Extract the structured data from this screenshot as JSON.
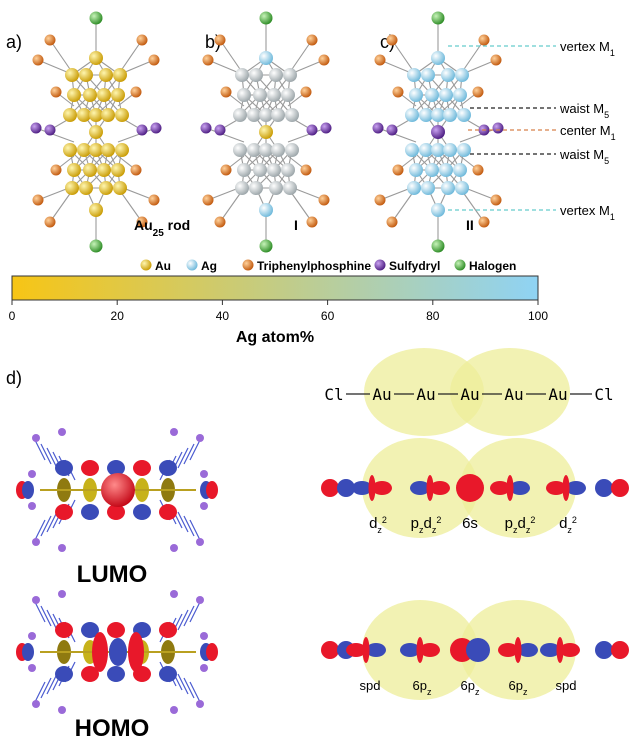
{
  "panel_labels": {
    "a": "a)",
    "b": "b)",
    "c": "c)",
    "d": "d)"
  },
  "cluster_names": {
    "a": "Au",
    "a_sub": "25",
    "a_suffix": " rod",
    "b": "I",
    "c": "II"
  },
  "site_labels": [
    {
      "text": "vertex M",
      "sub": "1",
      "color": "#66cccc"
    },
    {
      "text": "waist M",
      "sub": "5",
      "color": "#222222"
    },
    {
      "text": "center M",
      "sub": "1",
      "color": "#d8804a"
    },
    {
      "text": "waist M",
      "sub": "5",
      "color": "#222222"
    },
    {
      "text": "vertex M",
      "sub": "1",
      "color": "#66cccc"
    }
  ],
  "legend": [
    {
      "label": "Au",
      "color": "#e8c21a"
    },
    {
      "label": "Ag",
      "color": "#a8d8ee"
    },
    {
      "label": "Triphenylphosphine",
      "color": "#e07a1a"
    },
    {
      "label": "Sulfydryl",
      "color": "#6a2fa0"
    },
    {
      "label": "Halogen",
      "color": "#3fb03a"
    }
  ],
  "colorbar": {
    "gradient_start": "#f7c515",
    "gradient_end": "#8fd3f4",
    "ticks": [
      "0",
      "20",
      "40",
      "60",
      "80",
      "100"
    ],
    "tick_values": [
      0,
      20,
      40,
      60,
      80,
      100
    ],
    "title": "Ag atom%"
  },
  "chain_atoms": [
    "Cl",
    "Au",
    "Au",
    "Au",
    "Au",
    "Au",
    "Cl"
  ],
  "lumo_orbitals": [
    "d",
    "z",
    "2",
    "p",
    "z",
    "d",
    "z",
    "2",
    "6s",
    "p",
    "z",
    "d",
    "z",
    "2",
    "d",
    "z",
    "2"
  ],
  "lumo_labels": [
    {
      "main": "d",
      "sub": "z",
      "sup": "2"
    },
    {
      "main": "p",
      "sub": "z",
      "main2": "d",
      "sub2": "z",
      "sup": "2"
    },
    {
      "main": "6s"
    },
    {
      "main": "p",
      "sub": "z",
      "main2": "d",
      "sub2": "z",
      "sup": "2"
    },
    {
      "main": "d",
      "sub": "z",
      "sup": "2"
    }
  ],
  "homo_labels": [
    {
      "main": "spd"
    },
    {
      "main": "6p",
      "sub": "z"
    },
    {
      "main": "6p",
      "sub": "z"
    },
    {
      "main": "6p",
      "sub": "z"
    },
    {
      "main": "spd"
    }
  ],
  "orbital_titles": {
    "lumo": "LUMO",
    "homo": "HOMO"
  },
  "orbital_colors": {
    "positive": "#e8182a",
    "negative": "#3a4bb8",
    "overlap": "#eeee9a"
  }
}
